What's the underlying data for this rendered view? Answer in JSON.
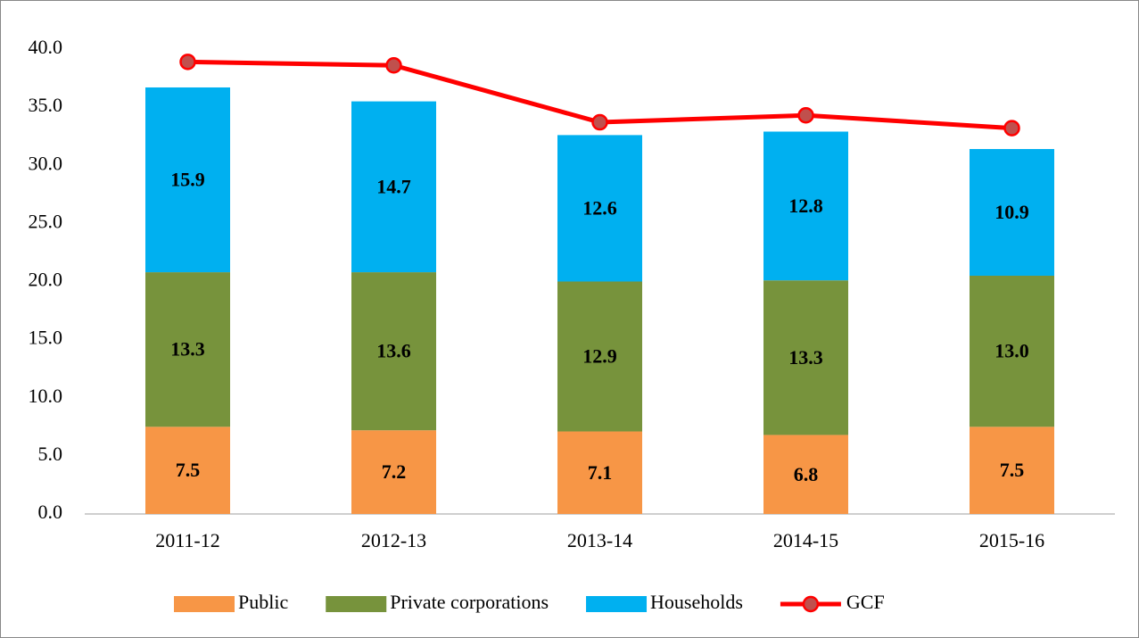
{
  "chart_data": {
    "type": "bar",
    "stacked": true,
    "categories": [
      "2011-12",
      "2012-13",
      "2013-14",
      "2014-15",
      "2015-16"
    ],
    "series": [
      {
        "name": "Public",
        "color": "#f79646",
        "values": [
          7.5,
          7.2,
          7.1,
          6.8,
          7.5
        ],
        "value_labels": [
          "7.5",
          "7.2",
          "7.1",
          "6.8",
          "7.5"
        ]
      },
      {
        "name": "Private corporations",
        "color": "#77933c",
        "values": [
          13.3,
          13.6,
          12.9,
          13.3,
          13.0
        ],
        "value_labels": [
          "13.3",
          "13.6",
          "12.9",
          "13.3",
          "13.0"
        ]
      },
      {
        "name": "Households",
        "color": "#00b0f0",
        "values": [
          15.9,
          14.7,
          12.6,
          12.8,
          10.9
        ],
        "value_labels": [
          "15.9",
          "14.7",
          "12.6",
          "12.8",
          "10.9"
        ]
      },
      {
        "name": "GCF",
        "type": "line",
        "color": "#ff0000",
        "marker_color": "#c0504d",
        "values": [
          38.9,
          38.6,
          33.7,
          34.3,
          33.2
        ]
      }
    ],
    "ylim": [
      0,
      40
    ],
    "yticks": [
      {
        "value": 0,
        "label": "0.0"
      },
      {
        "value": 5,
        "label": "5.0"
      },
      {
        "value": 10,
        "label": "10.0"
      },
      {
        "value": 15,
        "label": "15.0"
      },
      {
        "value": 20,
        "label": "20.0"
      },
      {
        "value": 25,
        "label": "25.0"
      },
      {
        "value": 30,
        "label": "30.0"
      },
      {
        "value": 35,
        "label": "35.0"
      },
      {
        "value": 40,
        "label": "40.0"
      }
    ],
    "grid": false,
    "legend": "bottom"
  }
}
